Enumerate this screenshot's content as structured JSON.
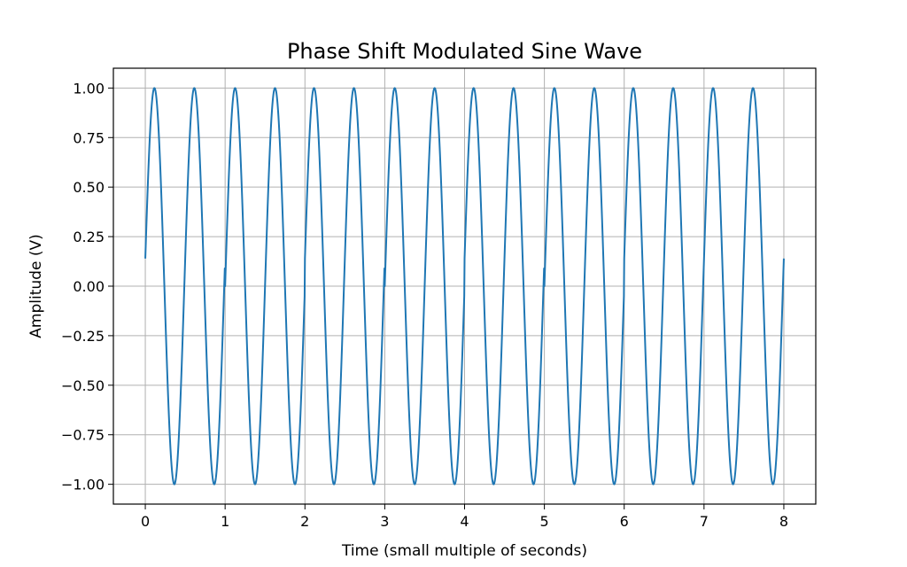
{
  "chart_data": {
    "type": "line",
    "title": "Phase Shift Modulated Sine Wave",
    "xlabel": "Time (small multiple of seconds)",
    "ylabel": "Amplitude (V)",
    "xlim": [
      -0.4,
      8.4
    ],
    "ylim": [
      -1.1,
      1.1
    ],
    "xticks": [
      0,
      1,
      2,
      3,
      4,
      5,
      6,
      7,
      8
    ],
    "xtick_labels": [
      "0",
      "1",
      "2",
      "3",
      "4",
      "5",
      "6",
      "7",
      "8"
    ],
    "yticks": [
      1.0,
      0.75,
      0.5,
      0.25,
      0.0,
      -0.25,
      -0.5,
      -0.75,
      -1.0
    ],
    "ytick_labels": [
      "1.00",
      "0.75",
      "0.50",
      "0.25",
      "0.00",
      "−0.25",
      "−0.50",
      "−0.75",
      "−1.00"
    ],
    "grid": true,
    "series": [
      {
        "color": "#1f77b4",
        "signal": "sin(2π·f·t + φ(t))",
        "frequency": 2,
        "phase_by_interval": [
          {
            "t_start": 0,
            "t_end": 1,
            "phase": 0.14
          },
          {
            "t_start": 1,
            "t_end": 2,
            "phase": 0.0
          },
          {
            "t_start": 2,
            "t_end": 3,
            "phase": 0.14
          },
          {
            "t_start": 3,
            "t_end": 4,
            "phase": 0.0
          },
          {
            "t_start": 4,
            "t_end": 5,
            "phase": 0.14
          },
          {
            "t_start": 5,
            "t_end": 6,
            "phase": 0.0
          },
          {
            "t_start": 6,
            "t_end": 8,
            "phase": 0.14
          }
        ],
        "samples": 2000
      }
    ]
  }
}
